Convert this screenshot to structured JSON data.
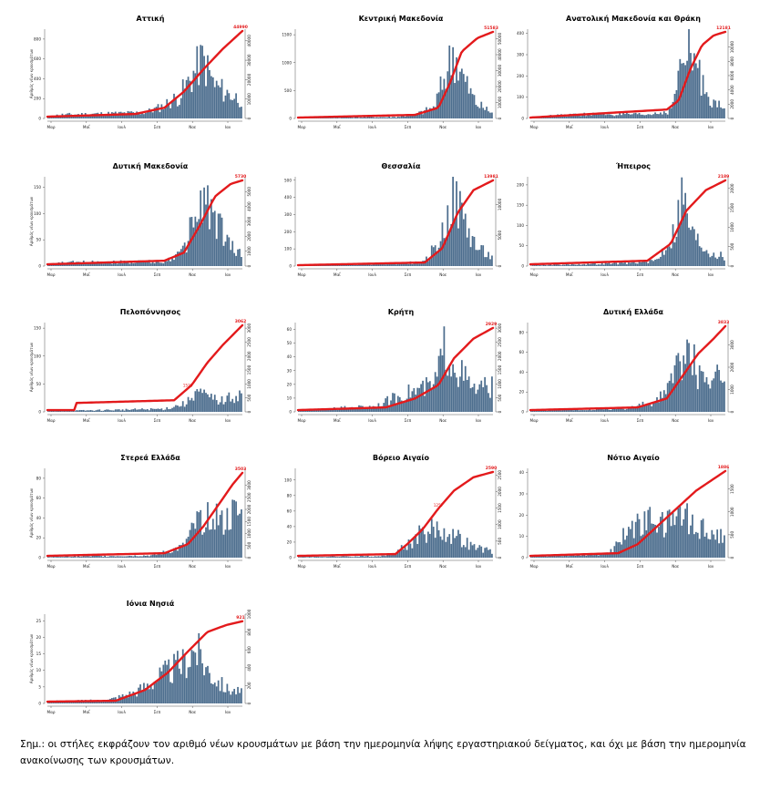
{
  "colors": {
    "bars": "#4d6e8e",
    "cumulative_line": "#e31a1c",
    "axis": "#555555"
  },
  "footnote": "Σημ.: οι στήλες εκφράζουν τον αριθμό νέων κρουσμάτων με βάση την ημερομηνία λήψης εργαστηριακού δείγματος, και όχι με βάση την ημερομηνία ανακοίνωσης των κρουσμάτων.",
  "chart_data": [
    {
      "type": "bar",
      "title": "Αττική",
      "ylabel": "Αριθμός νέων κρουσμάτων",
      "x_ticks": [
        "Μαρ",
        "Μαΐ",
        "Ιουλ",
        "Σεπ",
        "Νοε",
        "Ιαν"
      ],
      "left_ticks": [
        "0",
        "200",
        "400",
        "600",
        "800"
      ],
      "left_max": 900,
      "right_ticks": [
        "0",
        "10000",
        "20000",
        "30000",
        "40000"
      ],
      "right_max": 46000,
      "end_label": "44990",
      "mid_label": "",
      "daily_profile": [
        [
          0,
          0.02
        ],
        [
          0.06,
          0.05
        ],
        [
          0.5,
          0.08
        ],
        [
          0.58,
          0.15
        ],
        [
          0.68,
          0.3
        ],
        [
          0.74,
          0.55
        ],
        [
          0.8,
          0.8
        ],
        [
          0.86,
          0.45
        ],
        [
          0.92,
          0.35
        ],
        [
          1,
          0.25
        ]
      ],
      "cumulative_profile": [
        [
          0,
          0.02
        ],
        [
          0.45,
          0.05
        ],
        [
          0.6,
          0.12
        ],
        [
          0.7,
          0.3
        ],
        [
          0.8,
          0.55
        ],
        [
          0.9,
          0.78
        ],
        [
          1,
          0.98
        ]
      ]
    },
    {
      "type": "bar",
      "title": "Κεντρική Μακεδονία",
      "ylabel": "",
      "x_ticks": [
        "Μαρ",
        "Μαΐ",
        "Ιουλ",
        "Σεπ",
        "Νοε",
        "Ιαν"
      ],
      "left_ticks": [
        "0",
        "500",
        "1000",
        "1500"
      ],
      "left_max": 1600,
      "right_ticks": [
        "0",
        "10000",
        "20000",
        "30000",
        "40000",
        "50000"
      ],
      "right_max": 56000,
      "end_label": "51583",
      "mid_label": "",
      "daily_profile": [
        [
          0,
          0.01
        ],
        [
          0.5,
          0.02
        ],
        [
          0.6,
          0.05
        ],
        [
          0.7,
          0.15
        ],
        [
          0.76,
          0.6
        ],
        [
          0.8,
          0.92
        ],
        [
          0.86,
          0.5
        ],
        [
          0.92,
          0.2
        ],
        [
          1,
          0.08
        ]
      ],
      "cumulative_profile": [
        [
          0,
          0.01
        ],
        [
          0.6,
          0.04
        ],
        [
          0.72,
          0.12
        ],
        [
          0.78,
          0.4
        ],
        [
          0.84,
          0.75
        ],
        [
          0.92,
          0.9
        ],
        [
          1,
          0.97
        ]
      ]
    },
    {
      "type": "bar",
      "title": "Ανατολική Μακεδονία και Θράκη",
      "ylabel": "",
      "x_ticks": [
        "Μαρ",
        "Μαΐ",
        "Ιουλ",
        "Σεπ",
        "Νοε",
        "Ιαν"
      ],
      "left_ticks": [
        "0",
        "100",
        "200",
        "300",
        "400"
      ],
      "left_max": 420,
      "right_ticks": [
        "0",
        "2000",
        "4000",
        "6000",
        "8000",
        "10000"
      ],
      "right_max": 12500,
      "end_label": "12181",
      "mid_label": "",
      "daily_profile": [
        [
          0,
          0.02
        ],
        [
          0.3,
          0.06
        ],
        [
          0.6,
          0.05
        ],
        [
          0.72,
          0.1
        ],
        [
          0.78,
          0.7
        ],
        [
          0.82,
          0.95
        ],
        [
          0.88,
          0.5
        ],
        [
          0.94,
          0.25
        ],
        [
          1,
          0.1
        ]
      ],
      "cumulative_profile": [
        [
          0,
          0.01
        ],
        [
          0.7,
          0.1
        ],
        [
          0.76,
          0.2
        ],
        [
          0.82,
          0.55
        ],
        [
          0.88,
          0.82
        ],
        [
          0.94,
          0.93
        ],
        [
          1,
          0.97
        ]
      ]
    },
    {
      "type": "bar",
      "title": "Δυτική Μακεδονία",
      "ylabel": "Αριθμός νέων κρουσμάτων",
      "x_ticks": [
        "Μαρ",
        "Μαΐ",
        "Ιουλ",
        "Σεπ",
        "Νοε",
        "Ιαν"
      ],
      "left_ticks": [
        "0",
        "50",
        "100",
        "150"
      ],
      "left_max": 170,
      "right_ticks": [
        "0",
        "1000",
        "2000",
        "3000",
        "4000",
        "5000"
      ],
      "right_max": 6000,
      "end_label": "5730",
      "mid_label": "",
      "daily_profile": [
        [
          0,
          0.02
        ],
        [
          0.1,
          0.05
        ],
        [
          0.6,
          0.06
        ],
        [
          0.7,
          0.2
        ],
        [
          0.76,
          0.7
        ],
        [
          0.82,
          0.9
        ],
        [
          0.88,
          0.55
        ],
        [
          0.94,
          0.3
        ],
        [
          1,
          0.15
        ]
      ],
      "cumulative_profile": [
        [
          0,
          0.02
        ],
        [
          0.6,
          0.06
        ],
        [
          0.7,
          0.15
        ],
        [
          0.78,
          0.45
        ],
        [
          0.86,
          0.78
        ],
        [
          0.94,
          0.92
        ],
        [
          1,
          0.96
        ]
      ]
    },
    {
      "type": "bar",
      "title": "Θεσσαλία",
      "ylabel": "",
      "x_ticks": [
        "Μαρ",
        "Μαΐ",
        "Ιουλ",
        "Σεπ",
        "Νοε",
        "Ιαν"
      ],
      "left_ticks": [
        "0",
        "100",
        "200",
        "300",
        "400",
        "500"
      ],
      "left_max": 520,
      "right_ticks": [
        "0",
        "5000",
        "10000"
      ],
      "right_max": 14500,
      "end_label": "13981",
      "mid_label": "",
      "daily_profile": [
        [
          0,
          0.01
        ],
        [
          0.4,
          0.03
        ],
        [
          0.65,
          0.05
        ],
        [
          0.74,
          0.4
        ],
        [
          0.8,
          0.95
        ],
        [
          0.86,
          0.6
        ],
        [
          0.92,
          0.25
        ],
        [
          1,
          0.12
        ]
      ],
      "cumulative_profile": [
        [
          0,
          0.01
        ],
        [
          0.65,
          0.04
        ],
        [
          0.74,
          0.2
        ],
        [
          0.82,
          0.6
        ],
        [
          0.9,
          0.85
        ],
        [
          1,
          0.96
        ]
      ]
    },
    {
      "type": "bar",
      "title": "Ήπειρος",
      "ylabel": "",
      "x_ticks": [
        "Μαρ",
        "Μαΐ",
        "Ιουλ",
        "Σεπ",
        "Νοε",
        "Ιαν"
      ],
      "left_ticks": [
        "0",
        "50",
        "100",
        "150",
        "200"
      ],
      "left_max": 220,
      "right_ticks": [
        "0",
        "500",
        "1000",
        "1500",
        "2000"
      ],
      "right_max": 2300,
      "end_label": "2189",
      "mid_label": "",
      "daily_profile": [
        [
          0,
          0.01
        ],
        [
          0.5,
          0.04
        ],
        [
          0.65,
          0.08
        ],
        [
          0.74,
          0.45
        ],
        [
          0.78,
          0.95
        ],
        [
          0.84,
          0.4
        ],
        [
          0.92,
          0.2
        ],
        [
          1,
          0.12
        ]
      ],
      "cumulative_profile": [
        [
          0,
          0.02
        ],
        [
          0.6,
          0.06
        ],
        [
          0.72,
          0.25
        ],
        [
          0.8,
          0.62
        ],
        [
          0.9,
          0.85
        ],
        [
          1,
          0.96
        ]
      ]
    },
    {
      "type": "bar",
      "title": "Πελοπόννησος",
      "ylabel": "Αριθμός νέων κρουσμάτων",
      "x_ticks": [
        "Μαρ",
        "Μαΐ",
        "Ιουλ",
        "Σεπ",
        "Νοε",
        "Ιαν"
      ],
      "left_ticks": [
        "0",
        "50",
        "100",
        "150"
      ],
      "left_max": 160,
      "right_ticks": [
        "0",
        "500",
        "1000",
        "1500",
        "2000",
        "2500",
        "3000"
      ],
      "right_max": 3200,
      "end_label": "3062",
      "mid_label": "1520",
      "daily_profile": [
        [
          0,
          0.01
        ],
        [
          0.6,
          0.04
        ],
        [
          0.72,
          0.12
        ],
        [
          0.76,
          0.3
        ],
        [
          0.82,
          0.2
        ],
        [
          0.9,
          0.15
        ],
        [
          1,
          0.25
        ]
      ],
      "cumulative_profile": [
        [
          0,
          0.02
        ],
        [
          0.14,
          0.02
        ],
        [
          0.15,
          0.1
        ],
        [
          0.65,
          0.13
        ],
        [
          0.74,
          0.3
        ],
        [
          0.82,
          0.55
        ],
        [
          0.9,
          0.75
        ],
        [
          1,
          0.97
        ]
      ]
    },
    {
      "type": "bar",
      "title": "Κρήτη",
      "ylabel": "",
      "x_ticks": [
        "Μαρ",
        "Μαΐ",
        "Ιουλ",
        "Σεπ",
        "Νοε",
        "Ιαν"
      ],
      "left_ticks": [
        "0",
        "10",
        "20",
        "30",
        "40",
        "50",
        "60"
      ],
      "left_max": 65,
      "right_ticks": [
        "0",
        "500",
        "1000",
        "1500",
        "2000",
        "2500",
        "3000"
      ],
      "right_max": 3200,
      "end_label": "2929",
      "mid_label": "",
      "daily_profile": [
        [
          0,
          0.02
        ],
        [
          0.4,
          0.08
        ],
        [
          0.55,
          0.25
        ],
        [
          0.7,
          0.35
        ],
        [
          0.76,
          0.9
        ],
        [
          0.82,
          0.6
        ],
        [
          0.9,
          0.3
        ],
        [
          1,
          0.35
        ]
      ],
      "cumulative_profile": [
        [
          0,
          0.02
        ],
        [
          0.45,
          0.05
        ],
        [
          0.6,
          0.15
        ],
        [
          0.72,
          0.3
        ],
        [
          0.8,
          0.6
        ],
        [
          0.9,
          0.82
        ],
        [
          1,
          0.94
        ]
      ]
    },
    {
      "type": "bar",
      "title": "Δυτική Ελλάδα",
      "ylabel": "",
      "x_ticks": [
        "Μαρ",
        "Μαΐ",
        "Ιουλ",
        "Σεπ",
        "Νοε",
        "Ιαν"
      ],
      "left_ticks": [
        "0",
        "20",
        "40",
        "60",
        "80"
      ],
      "left_max": 90,
      "right_ticks": [
        "0",
        "1000",
        "2000",
        "3000"
      ],
      "right_max": 4000,
      "end_label": "3833",
      "mid_label": "",
      "daily_profile": [
        [
          0,
          0.02
        ],
        [
          0.5,
          0.05
        ],
        [
          0.66,
          0.15
        ],
        [
          0.74,
          0.5
        ],
        [
          0.8,
          0.9
        ],
        [
          0.86,
          0.55
        ],
        [
          0.94,
          0.45
        ],
        [
          1,
          0.5
        ]
      ],
      "cumulative_profile": [
        [
          0,
          0.02
        ],
        [
          0.55,
          0.05
        ],
        [
          0.7,
          0.15
        ],
        [
          0.78,
          0.4
        ],
        [
          0.86,
          0.65
        ],
        [
          0.94,
          0.82
        ],
        [
          1,
          0.96
        ]
      ]
    },
    {
      "type": "bar",
      "title": "Στερεά Ελλάδα",
      "ylabel": "Αριθμός νέων κρουσμάτων",
      "x_ticks": [
        "Μαρ",
        "Μαΐ",
        "Ιουλ",
        "Σεπ",
        "Νοε",
        "Ιαν"
      ],
      "left_ticks": [
        "0",
        "20",
        "40",
        "60",
        "80"
      ],
      "left_max": 90,
      "right_ticks": [
        "0",
        "500",
        "1000",
        "1500",
        "2000",
        "2500",
        "3000"
      ],
      "right_max": 3700,
      "end_label": "3503",
      "mid_label": "",
      "daily_profile": [
        [
          0,
          0.01
        ],
        [
          0.55,
          0.03
        ],
        [
          0.7,
          0.15
        ],
        [
          0.78,
          0.5
        ],
        [
          0.84,
          0.7
        ],
        [
          0.9,
          0.45
        ],
        [
          0.96,
          0.6
        ],
        [
          1,
          0.55
        ]
      ],
      "cumulative_profile": [
        [
          0,
          0.02
        ],
        [
          0.6,
          0.05
        ],
        [
          0.72,
          0.15
        ],
        [
          0.8,
          0.35
        ],
        [
          0.88,
          0.6
        ],
        [
          0.95,
          0.82
        ],
        [
          1,
          0.95
        ]
      ]
    },
    {
      "type": "bar",
      "title": "Βόρειο Αιγαίο",
      "ylabel": "",
      "x_ticks": [
        "Μαρ",
        "Μαΐ",
        "Ιουλ",
        "Σεπ",
        "Νοε",
        "Ιαν"
      ],
      "left_ticks": [
        "0",
        "20",
        "40",
        "60",
        "80",
        "100"
      ],
      "left_max": 115,
      "right_ticks": [
        "0",
        "500",
        "1000",
        "1500",
        "2000",
        "2500"
      ],
      "right_max": 2700,
      "end_label": "2590",
      "mid_label": "1257",
      "daily_profile": [
        [
          0,
          0.01
        ],
        [
          0.45,
          0.02
        ],
        [
          0.55,
          0.15
        ],
        [
          0.62,
          0.3
        ],
        [
          0.7,
          0.4
        ],
        [
          0.8,
          0.3
        ],
        [
          0.9,
          0.15
        ],
        [
          1,
          0.08
        ]
      ],
      "cumulative_profile": [
        [
          0,
          0.02
        ],
        [
          0.5,
          0.04
        ],
        [
          0.56,
          0.15
        ],
        [
          0.64,
          0.32
        ],
        [
          0.72,
          0.55
        ],
        [
          0.8,
          0.75
        ],
        [
          0.9,
          0.9
        ],
        [
          1,
          0.96
        ]
      ]
    },
    {
      "type": "bar",
      "title": "Νότιο Αιγαίο",
      "ylabel": "",
      "x_ticks": [
        "Μαρ",
        "Μαΐ",
        "Ιουλ",
        "Σεπ",
        "Νοε",
        "Ιαν"
      ],
      "left_ticks": [
        "0",
        "10",
        "20",
        "30",
        "40"
      ],
      "left_max": 42,
      "right_ticks": [
        "0",
        "500",
        "1000",
        "1500"
      ],
      "right_max": 1950,
      "end_label": "1886",
      "mid_label": "",
      "daily_profile": [
        [
          0,
          0.02
        ],
        [
          0.4,
          0.05
        ],
        [
          0.5,
          0.35
        ],
        [
          0.6,
          0.5
        ],
        [
          0.7,
          0.45
        ],
        [
          0.8,
          0.6
        ],
        [
          0.9,
          0.35
        ],
        [
          1,
          0.3
        ]
      ],
      "cumulative_profile": [
        [
          0,
          0.02
        ],
        [
          0.45,
          0.05
        ],
        [
          0.55,
          0.15
        ],
        [
          0.65,
          0.35
        ],
        [
          0.75,
          0.55
        ],
        [
          0.85,
          0.75
        ],
        [
          1,
          0.97
        ]
      ]
    },
    {
      "type": "bar",
      "title": "Ιόνια Νησιά",
      "ylabel": "Αριθμός νέων κρουσμάτων",
      "x_ticks": [
        "Μαρ",
        "Μαΐ",
        "Ιουλ",
        "Σεπ",
        "Νοε",
        "Ιαν"
      ],
      "left_ticks": [
        "0",
        "5",
        "10",
        "15",
        "20",
        "25"
      ],
      "left_max": 27,
      "right_ticks": [
        "0",
        "200",
        "400",
        "600",
        "800",
        "1000"
      ],
      "right_max": 1000,
      "end_label": "921",
      "mid_label": "",
      "daily_profile": [
        [
          0,
          0.03
        ],
        [
          0.3,
          0.04
        ],
        [
          0.45,
          0.15
        ],
        [
          0.6,
          0.4
        ],
        [
          0.7,
          0.55
        ],
        [
          0.76,
          0.75
        ],
        [
          0.84,
          0.4
        ],
        [
          0.92,
          0.2
        ],
        [
          1,
          0.15
        ]
      ],
      "cumulative_profile": [
        [
          0,
          0.02
        ],
        [
          0.35,
          0.03
        ],
        [
          0.5,
          0.15
        ],
        [
          0.62,
          0.35
        ],
        [
          0.72,
          0.58
        ],
        [
          0.82,
          0.8
        ],
        [
          0.92,
          0.88
        ],
        [
          1,
          0.92
        ]
      ]
    }
  ]
}
